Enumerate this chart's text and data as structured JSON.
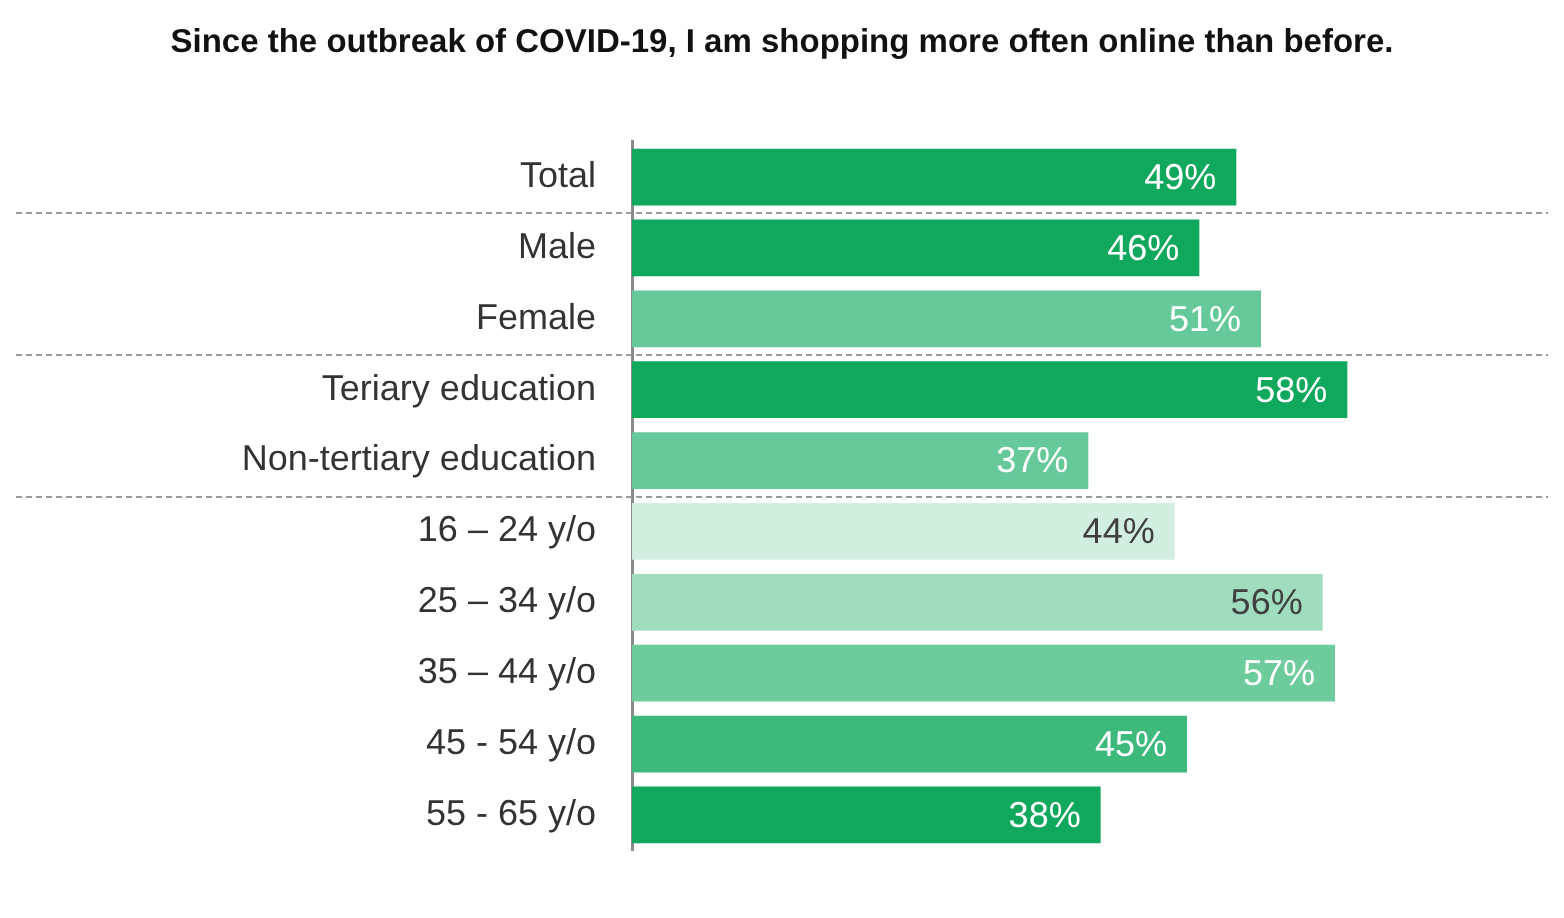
{
  "chart_data": {
    "type": "bar",
    "orientation": "horizontal",
    "title": "Since the outbreak of COVID-19, I am shopping more often online than before.",
    "categories": [
      "Total",
      "Male",
      "Female",
      "Teriary education",
      "Non-tertiary education",
      "16 – 24 y/o",
      "25 – 34 y/o",
      "35 – 44 y/o",
      "45 - 54 y/o",
      "55 - 65 y/o"
    ],
    "values": [
      49,
      46,
      51,
      58,
      37,
      44,
      56,
      57,
      45,
      38
    ],
    "value_labels": [
      "49%",
      "46%",
      "51%",
      "58%",
      "37%",
      "44%",
      "56%",
      "57%",
      "45%",
      "38%"
    ],
    "colors": [
      "#10a85c",
      "#10a85c",
      "#66c999",
      "#10a85c",
      "#66c999",
      "#d2eedf",
      "#a0ddbf",
      "#6ecb9c",
      "#3db97b",
      "#10a85c"
    ],
    "legend": false
  }
}
